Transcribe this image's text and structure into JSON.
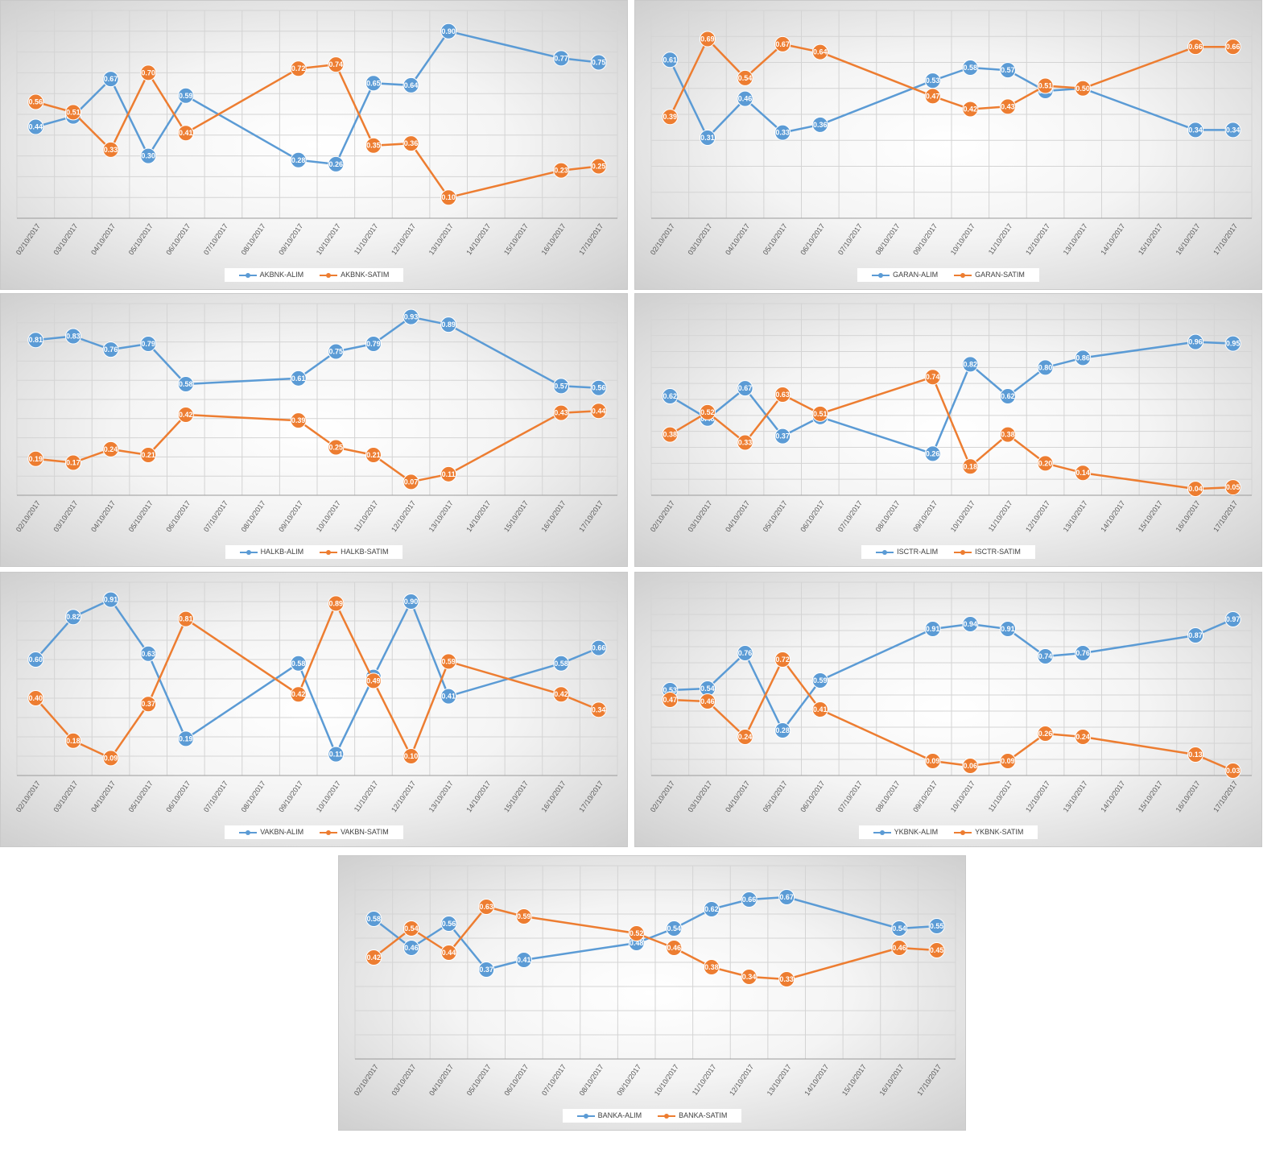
{
  "colors": {
    "alim": "#5b9bd5",
    "satim": "#ed7d31"
  },
  "chart_data": [
    {
      "type": "line",
      "categories": [
        "02/10/2017",
        "03/10/2017",
        "04/10/2017",
        "05/10/2017",
        "06/10/2017",
        "07/10/2017",
        "08/10/2017",
        "09/10/2017",
        "10/10/2017",
        "11/10/2017",
        "12/10/2017",
        "13/10/2017",
        "14/10/2017",
        "15/10/2017",
        "16/10/2017",
        "17/10/2017"
      ],
      "ylim": [
        0,
        1
      ],
      "grid": true,
      "legend": "bottom",
      "series": [
        {
          "name": "AKBNK-ALIM",
          "values": [
            0.44,
            0.49,
            0.67,
            0.3,
            0.59,
            null,
            null,
            0.28,
            0.26,
            0.65,
            0.64,
            0.9,
            null,
            null,
            0.77,
            0.75
          ]
        },
        {
          "name": "AKBNK-SATIM",
          "values": [
            0.56,
            0.51,
            0.33,
            0.7,
            0.41,
            null,
            null,
            0.72,
            0.74,
            0.35,
            0.36,
            0.1,
            null,
            null,
            0.23,
            0.25
          ]
        }
      ]
    },
    {
      "type": "line",
      "categories": [
        "02/10/2017",
        "03/10/2017",
        "04/10/2017",
        "05/10/2017",
        "06/10/2017",
        "07/10/2017",
        "08/10/2017",
        "09/10/2017",
        "10/10/2017",
        "11/10/2017",
        "12/10/2017",
        "13/10/2017",
        "14/10/2017",
        "15/10/2017",
        "16/10/2017",
        "17/10/2017"
      ],
      "ylim": [
        0,
        0.8
      ],
      "grid": true,
      "legend": "bottom",
      "series": [
        {
          "name": "GARAN-ALIM",
          "values": [
            0.61,
            0.31,
            0.46,
            0.33,
            0.36,
            null,
            null,
            0.53,
            0.58,
            0.57,
            0.49,
            0.5,
            null,
            null,
            0.34,
            0.34
          ]
        },
        {
          "name": "GARAN-SATIM",
          "values": [
            0.39,
            0.69,
            0.54,
            0.67,
            0.64,
            null,
            null,
            0.47,
            0.42,
            0.43,
            0.51,
            0.5,
            null,
            null,
            0.66,
            0.66
          ]
        }
      ]
    },
    {
      "type": "line",
      "categories": [
        "02/10/2017",
        "03/10/2017",
        "04/10/2017",
        "05/10/2017",
        "06/10/2017",
        "07/10/2017",
        "08/10/2017",
        "09/10/2017",
        "10/10/2017",
        "11/10/2017",
        "12/10/2017",
        "13/10/2017",
        "14/10/2017",
        "15/10/2017",
        "16/10/2017",
        "17/10/2017"
      ],
      "ylim": [
        0,
        1
      ],
      "grid": true,
      "legend": "bottom",
      "series": [
        {
          "name": "HALKB-ALIM",
          "values": [
            0.81,
            0.83,
            0.76,
            0.79,
            0.58,
            null,
            null,
            0.61,
            0.75,
            0.79,
            0.93,
            0.89,
            null,
            null,
            0.57,
            0.56
          ]
        },
        {
          "name": "HALKB-SATIM",
          "values": [
            0.19,
            0.17,
            0.24,
            0.21,
            0.42,
            null,
            null,
            0.39,
            0.25,
            0.21,
            0.07,
            0.11,
            null,
            null,
            0.43,
            0.44
          ]
        }
      ]
    },
    {
      "type": "line",
      "categories": [
        "02/10/2017",
        "03/10/2017",
        "04/10/2017",
        "05/10/2017",
        "06/10/2017",
        "07/10/2017",
        "08/10/2017",
        "09/10/2017",
        "10/10/2017",
        "11/10/2017",
        "12/10/2017",
        "13/10/2017",
        "14/10/2017",
        "15/10/2017",
        "16/10/2017",
        "17/10/2017"
      ],
      "ylim": [
        0,
        1.2
      ],
      "grid": true,
      "legend": "bottom",
      "series": [
        {
          "name": "ISCTR-ALIM",
          "values": [
            0.62,
            0.48,
            0.67,
            0.37,
            0.49,
            null,
            null,
            0.26,
            0.82,
            0.62,
            0.8,
            0.86,
            null,
            null,
            0.96,
            0.95
          ]
        },
        {
          "name": "ISCTR-SATIM",
          "values": [
            0.38,
            0.52,
            0.33,
            0.63,
            0.51,
            null,
            null,
            0.74,
            0.18,
            0.38,
            0.2,
            0.14,
            null,
            null,
            0.04,
            0.05
          ]
        }
      ]
    },
    {
      "type": "line",
      "categories": [
        "02/10/2017",
        "03/10/2017",
        "04/10/2017",
        "05/10/2017",
        "06/10/2017",
        "07/10/2017",
        "08/10/2017",
        "09/10/2017",
        "10/10/2017",
        "11/10/2017",
        "12/10/2017",
        "13/10/2017",
        "14/10/2017",
        "15/10/2017",
        "16/10/2017",
        "17/10/2017"
      ],
      "ylim": [
        0,
        1
      ],
      "grid": true,
      "legend": "bottom",
      "series": [
        {
          "name": "VAKBN-ALIM",
          "values": [
            0.6,
            0.82,
            0.91,
            0.63,
            0.19,
            null,
            null,
            0.58,
            0.11,
            0.51,
            0.9,
            0.41,
            null,
            null,
            0.58,
            0.66
          ]
        },
        {
          "name": "VAKBN-SATIM",
          "values": [
            0.4,
            0.18,
            0.09,
            0.37,
            0.81,
            null,
            null,
            0.42,
            0.89,
            0.49,
            0.1,
            0.59,
            null,
            null,
            0.42,
            0.34
          ]
        }
      ]
    },
    {
      "type": "line",
      "categories": [
        "02/10/2017",
        "03/10/2017",
        "04/10/2017",
        "05/10/2017",
        "06/10/2017",
        "07/10/2017",
        "08/10/2017",
        "09/10/2017",
        "10/10/2017",
        "11/10/2017",
        "12/10/2017",
        "13/10/2017",
        "14/10/2017",
        "15/10/2017",
        "16/10/2017",
        "17/10/2017"
      ],
      "ylim": [
        0,
        1.2
      ],
      "grid": true,
      "legend": "bottom",
      "series": [
        {
          "name": "YKBNK-ALIM",
          "values": [
            0.53,
            0.54,
            0.76,
            0.28,
            0.59,
            null,
            null,
            0.91,
            0.94,
            0.91,
            0.74,
            0.76,
            null,
            null,
            0.87,
            0.97
          ]
        },
        {
          "name": "YKBNK-SATIM",
          "values": [
            0.47,
            0.46,
            0.24,
            0.72,
            0.41,
            null,
            null,
            0.09,
            0.06,
            0.09,
            0.26,
            0.24,
            null,
            null,
            0.13,
            0.03
          ]
        }
      ]
    },
    {
      "type": "line",
      "categories": [
        "02/10/2017",
        "03/10/2017",
        "04/10/2017",
        "05/10/2017",
        "06/10/2017",
        "07/10/2017",
        "08/10/2017",
        "09/10/2017",
        "10/10/2017",
        "11/10/2017",
        "12/10/2017",
        "13/10/2017",
        "14/10/2017",
        "15/10/2017",
        "16/10/2017",
        "17/10/2017"
      ],
      "ylim": [
        0,
        0.8
      ],
      "grid": true,
      "legend": "bottom",
      "series": [
        {
          "name": "BANKA-ALIM",
          "values": [
            0.58,
            0.46,
            0.56,
            0.37,
            0.41,
            null,
            null,
            0.48,
            0.54,
            0.62,
            0.66,
            0.67,
            null,
            null,
            0.54,
            0.55
          ]
        },
        {
          "name": "BANKA-SATIM",
          "values": [
            0.42,
            0.54,
            0.44,
            0.63,
            0.59,
            null,
            null,
            0.52,
            0.46,
            0.38,
            0.34,
            0.33,
            null,
            null,
            0.46,
            0.45
          ]
        }
      ]
    }
  ]
}
